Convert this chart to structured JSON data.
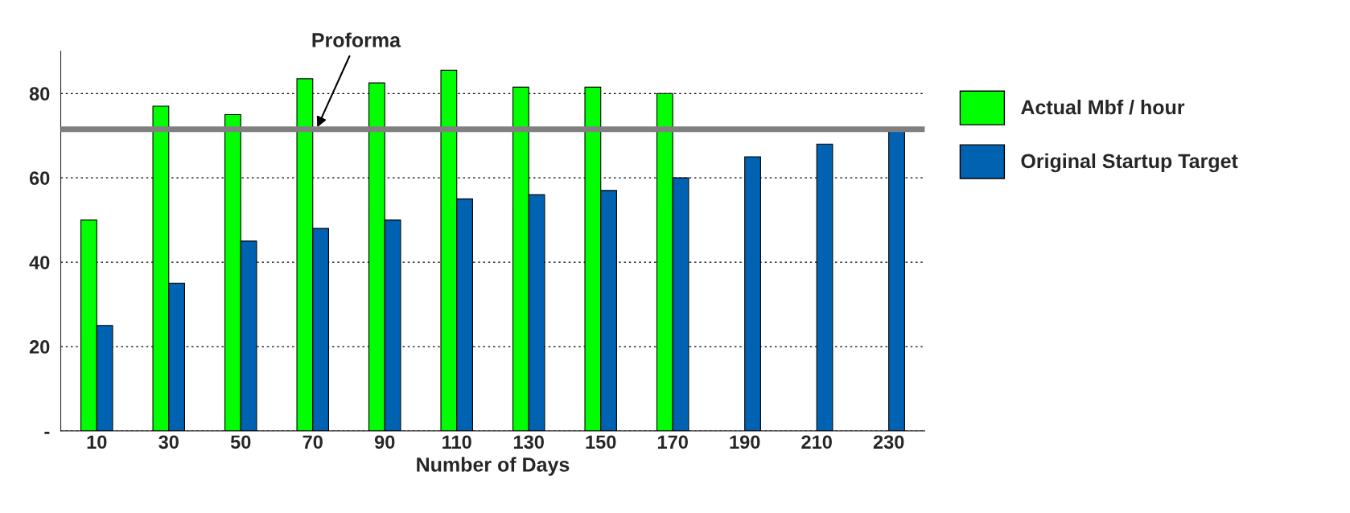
{
  "chart_data": {
    "type": "bar",
    "xlabel": "Number of Days",
    "categories": [
      "10",
      "30",
      "50",
      "70",
      "90",
      "110",
      "130",
      "150",
      "170",
      "190",
      "210",
      "230"
    ],
    "series": [
      {
        "name": "Actual Mbf / hour",
        "color": "#00ff00",
        "values": [
          50,
          77,
          75,
          83.5,
          82.5,
          85.5,
          81.5,
          81.5,
          80,
          null,
          null,
          null
        ]
      },
      {
        "name": "Original Startup Target",
        "color": "#0062b0",
        "values": [
          25,
          35,
          45,
          48,
          50,
          55,
          56,
          57,
          60,
          65,
          68,
          71
        ]
      }
    ],
    "ylim": [
      0,
      90
    ],
    "yticks": [
      {
        "value": 0,
        "label": "-"
      },
      20,
      40,
      60,
      80
    ],
    "ref_lines": [
      {
        "axis": "y",
        "value": 71.5,
        "label": "Proforma",
        "color": "#808080"
      }
    ],
    "grid": "y",
    "legend": "right"
  }
}
